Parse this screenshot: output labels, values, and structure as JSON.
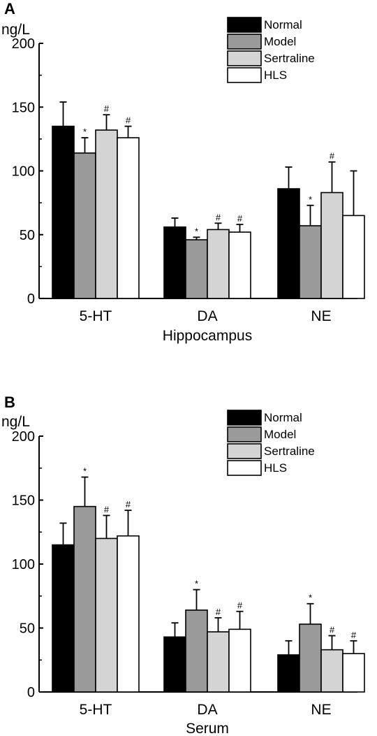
{
  "chart_data": [
    {
      "type": "bar",
      "panel": "A",
      "unit_label": "ng/L",
      "xlabel": "Hippocampus",
      "ylabel": "",
      "ylim": [
        0,
        200
      ],
      "yticks": [
        0,
        50,
        100,
        150,
        200
      ],
      "categories": [
        "5-HT",
        "DA",
        "NE"
      ],
      "legend_position": "top-right",
      "series": [
        {
          "name": "Normal",
          "color": "#000000",
          "values": [
            135,
            56,
            86
          ],
          "errors": [
            19,
            7,
            17
          ],
          "markers": [
            "",
            "",
            ""
          ]
        },
        {
          "name": "Model",
          "color": "#9a9a9a",
          "values": [
            114,
            46,
            57
          ],
          "errors": [
            12,
            2,
            16
          ],
          "markers": [
            "*",
            "*",
            "*"
          ]
        },
        {
          "name": "Sertraline",
          "color": "#d4d4d4",
          "values": [
            132,
            54,
            83
          ],
          "errors": [
            12,
            5,
            24
          ],
          "markers": [
            "#",
            "#",
            "#"
          ]
        },
        {
          "name": "HLS",
          "color": "#ffffff",
          "values": [
            126,
            52,
            65
          ],
          "errors": [
            9,
            6,
            35
          ],
          "markers": [
            "#",
            "#",
            ""
          ]
        }
      ]
    },
    {
      "type": "bar",
      "panel": "B",
      "unit_label": "ng/L",
      "xlabel": "Serum",
      "ylabel": "",
      "ylim": [
        0,
        200
      ],
      "yticks": [
        0,
        50,
        100,
        150,
        200
      ],
      "categories": [
        "5-HT",
        "DA",
        "NE"
      ],
      "legend_position": "top-right",
      "series": [
        {
          "name": "Normal",
          "color": "#000000",
          "values": [
            115,
            43,
            29
          ],
          "errors": [
            17,
            11,
            11
          ],
          "markers": [
            "",
            "",
            ""
          ]
        },
        {
          "name": "Model",
          "color": "#9a9a9a",
          "values": [
            145,
            64,
            53
          ],
          "errors": [
            23,
            16,
            16
          ],
          "markers": [
            "*",
            "*",
            "*"
          ]
        },
        {
          "name": "Sertraline",
          "color": "#d4d4d4",
          "values": [
            120,
            47,
            33
          ],
          "errors": [
            18,
            11,
            11
          ],
          "markers": [
            "#",
            "#",
            "#"
          ]
        },
        {
          "name": "HLS",
          "color": "#ffffff",
          "values": [
            122,
            49,
            30
          ],
          "errors": [
            20,
            14,
            10
          ],
          "markers": [
            "#",
            "#",
            "#"
          ]
        }
      ]
    }
  ]
}
